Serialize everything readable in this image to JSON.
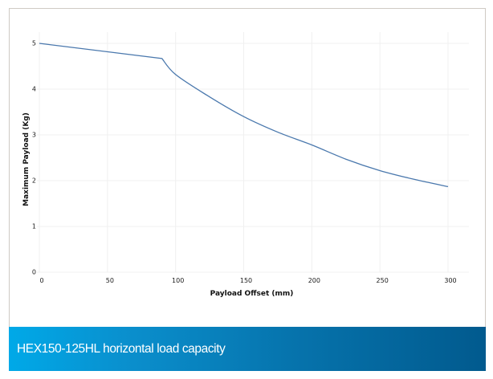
{
  "caption": "HEX150-125HL horizontal load capacity",
  "colors": {
    "line": "#4a78ad",
    "grid": "#f0f0f0",
    "banner_start": "#00a9e8",
    "banner_end": "#015a8e",
    "frame_border": "#cfcac4"
  },
  "chart_data": {
    "type": "line",
    "title": "",
    "xlabel": "Payload Offset (mm)",
    "ylabel": "Maximum Payload (Kg)",
    "xlim": [
      0,
      300
    ],
    "ylim": [
      0,
      5
    ],
    "xticks": [
      0,
      50,
      100,
      150,
      200,
      250,
      300
    ],
    "yticks": [
      0,
      1,
      2,
      3,
      4,
      5
    ],
    "grid": true,
    "legend": "none",
    "series": [
      {
        "name": "HEX150-125HL",
        "x": [
          0,
          90,
          100,
          125,
          150,
          175,
          200,
          225,
          250,
          275,
          300
        ],
        "y": [
          5.0,
          4.67,
          4.32,
          3.83,
          3.4,
          3.06,
          2.78,
          2.47,
          2.22,
          2.03,
          1.87
        ]
      }
    ]
  }
}
